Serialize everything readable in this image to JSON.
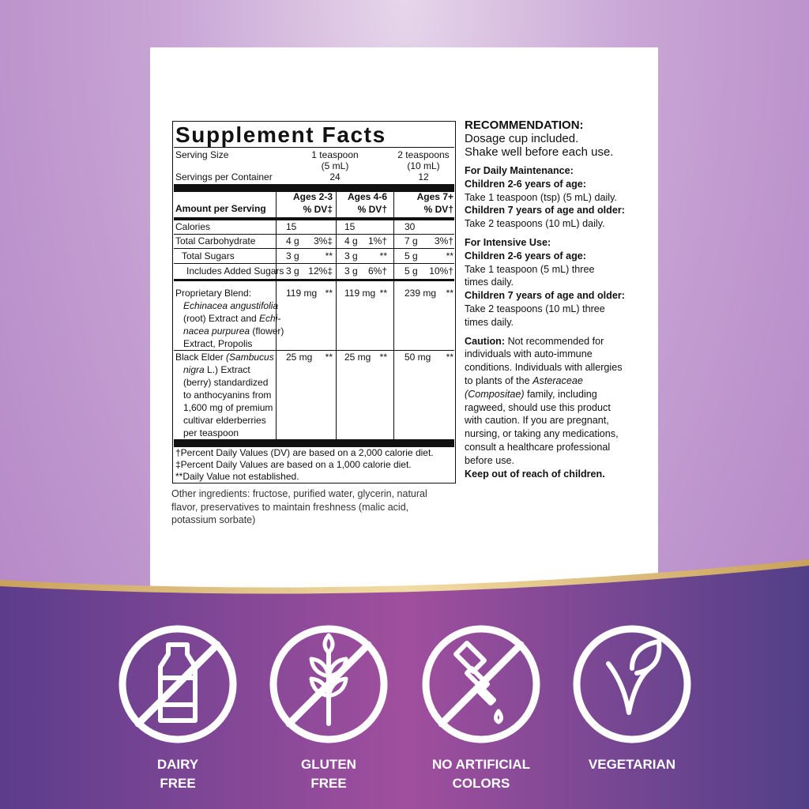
{
  "facts": {
    "title": "Supplement Facts",
    "serving_size_label": "Serving Size",
    "servings_label": "Servings per Container",
    "serving_columns": [
      [
        "1 teaspoon",
        "(5 mL)",
        "24"
      ],
      [
        "2 teaspoons",
        "(10 mL)",
        "12"
      ]
    ],
    "amount_label": "Amount per Serving",
    "age_headers": [
      [
        "Ages 2-3",
        "% DV‡"
      ],
      [
        "Ages 4-6",
        "% DV†"
      ],
      [
        "Ages 7+",
        "% DV†"
      ]
    ],
    "rows": [
      {
        "name": [
          "Calories"
        ],
        "cells": [
          [
            "15"
          ],
          [
            "15"
          ],
          [
            "30"
          ]
        ]
      },
      {
        "name": [
          "Total Carbohydrate"
        ],
        "cells": [
          [
            "4 g",
            "3%‡"
          ],
          [
            "4 g",
            "1%†"
          ],
          [
            "7 g",
            "3%†"
          ]
        ]
      },
      {
        "name": [
          "Total Sugars"
        ],
        "cells": [
          [
            "3 g",
            "**"
          ],
          [
            "3 g",
            "**"
          ],
          [
            "5 g",
            "**"
          ]
        ]
      },
      {
        "name": [
          "Includes Added Sugars"
        ],
        "cells": [
          [
            "3 g",
            "12%‡"
          ],
          [
            "3 g",
            "6%†"
          ],
          [
            "5 g",
            "10%†"
          ]
        ]
      },
      {
        "name": [
          "Proprietary Blend:",
          [
            {
              "i": "Echinacea angustifolia"
            }
          ],
          [
            "(root) Extract and ",
            {
              "i": "Echi-"
            }
          ],
          [
            {
              "i": "nacea purpurea"
            },
            " (flower)"
          ],
          "Extract, Propolis"
        ],
        "cells": [
          [
            "119 mg",
            "**"
          ],
          [
            "119 mg",
            "**"
          ],
          [
            "239 mg",
            "**"
          ]
        ]
      },
      {
        "name": [
          [
            "Black Elder ",
            {
              "i": "(Sambucus"
            }
          ],
          [
            {
              "i": "nigra"
            },
            " L.) Extract"
          ],
          "(berry) standardized",
          "to anthocyanins from",
          "1,600 mg of premium",
          "cultivar elderberries",
          "per teaspoon"
        ],
        "cells": [
          [
            "25 mg",
            "**"
          ],
          [
            "25 mg",
            "**"
          ],
          [
            "50 mg",
            "**"
          ]
        ]
      }
    ],
    "footnotes": [
      "†Percent Daily Values (DV) are based on a 2,000 calorie diet.",
      "‡Percent Daily Values are based on a 1,000 calorie diet.",
      "**Daily Value not established."
    ]
  },
  "other_ingredients": [
    "Other ingredients: fructose, purified water, glycerin, natural",
    "flavor, preservatives to maintain freshness (malic acid,",
    "potassium sorbate)"
  ],
  "recommendation": [
    [
      [
        {
          "b": "RECOMMENDATION:"
        }
      ],
      "Dosage cup included.",
      "Shake well before each use."
    ],
    [
      [
        {
          "b": "For Daily Maintenance:"
        }
      ],
      [
        {
          "b": "Children 2-6 years of age:"
        }
      ],
      "Take 1 teaspoon (tsp) (5 mL) daily.",
      [
        {
          "b": "Children 7 years of age and older:"
        }
      ],
      "Take 2 teaspoons (10 mL) daily."
    ],
    [
      [
        {
          "b": "For Intensive Use:"
        }
      ],
      [
        {
          "b": "Children 2-6 years of age:"
        }
      ],
      "Take 1 teaspoon (5 mL) three",
      "times daily.",
      [
        {
          "b": "Children 7 years of age and older:"
        }
      ],
      "Take 2 teaspoons (10 mL) three",
      "times daily."
    ],
    [
      [
        {
          "b": "Caution:"
        },
        " Not recommended for"
      ],
      "individuals with auto-immune",
      "conditions. Individuals with allergies",
      [
        "to plants of the ",
        {
          "i": "Asteraceae"
        }
      ],
      [
        {
          "i": "(Compositae)"
        },
        " family, including"
      ],
      "ragweed, should use this product",
      "with caution. If you are pregnant,",
      "nursing, or taking any medications,",
      "consult a healthcare professional",
      "before use.",
      [
        {
          "b": "Keep out of reach of children."
        }
      ]
    ]
  ],
  "badges": [
    [
      "DAIRY",
      "FREE"
    ],
    [
      "GLUTEN",
      "FREE"
    ],
    [
      "NO ARTIFICIAL",
      "COLORS"
    ],
    [
      "VEGETARIAN"
    ]
  ]
}
